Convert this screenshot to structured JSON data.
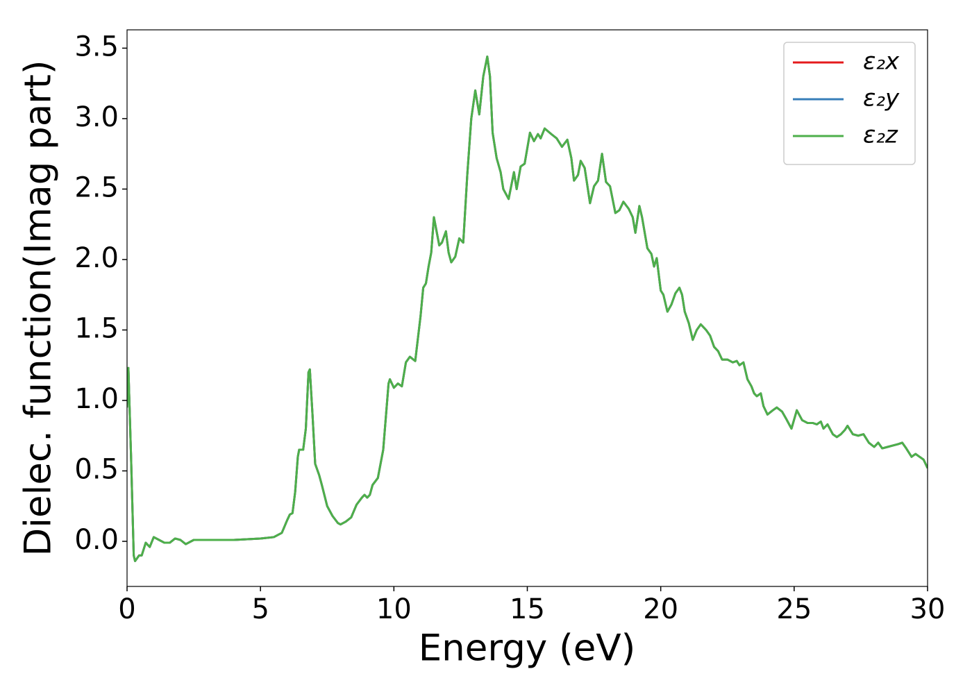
{
  "chart_data": {
    "type": "line",
    "xlabel": "Energy (eV)",
    "ylabel": "Dielec. function(Imag part)",
    "xlim": [
      0,
      30
    ],
    "ylim": [
      -0.32,
      3.63
    ],
    "xticks": [
      0,
      5,
      10,
      15,
      20,
      25,
      30
    ],
    "yticks": [
      {
        "value": 0,
        "label": "0.0"
      },
      0.5,
      {
        "value": 1,
        "label": "1.0"
      },
      1.5,
      {
        "value": 2,
        "label": "2.0"
      },
      2.5,
      {
        "value": 3,
        "label": "3.0"
      },
      3.5
    ],
    "legend": "upper right",
    "x": [
      0,
      0.05,
      0.15,
      0.25,
      0.3,
      0.45,
      0.55,
      0.7,
      0.85,
      1.0,
      1.2,
      1.4,
      1.6,
      1.8,
      2.0,
      2.2,
      2.5,
      3.0,
      3.5,
      4.0,
      4.5,
      5.0,
      5.5,
      5.8,
      6.0,
      6.1,
      6.2,
      6.3,
      6.4,
      6.45,
      6.6,
      6.7,
      6.8,
      6.85,
      6.95,
      7.05,
      7.2,
      7.3,
      7.5,
      7.7,
      7.9,
      8.0,
      8.2,
      8.4,
      8.6,
      8.8,
      8.9,
      9.0,
      9.1,
      9.2,
      9.4,
      9.6,
      9.8,
      9.85,
      10.0,
      10.15,
      10.3,
      10.45,
      10.6,
      10.8,
      11.0,
      11.1,
      11.2,
      11.3,
      11.4,
      11.5,
      11.6,
      11.7,
      11.8,
      11.95,
      12.05,
      12.15,
      12.3,
      12.45,
      12.6,
      12.75,
      12.9,
      13.05,
      13.2,
      13.35,
      13.5,
      13.6,
      13.7,
      13.85,
      14.0,
      14.1,
      14.3,
      14.5,
      14.6,
      14.75,
      14.9,
      15.1,
      15.25,
      15.4,
      15.5,
      15.65,
      15.9,
      16.1,
      16.3,
      16.5,
      16.65,
      16.75,
      16.9,
      17.0,
      17.15,
      17.35,
      17.5,
      17.65,
      17.8,
      17.95,
      18.1,
      18.3,
      18.45,
      18.6,
      18.8,
      18.95,
      19.05,
      19.2,
      19.3,
      19.5,
      19.65,
      19.75,
      19.85,
      20.0,
      20.1,
      20.25,
      20.4,
      20.55,
      20.7,
      20.8,
      20.9,
      21.05,
      21.2,
      21.35,
      21.5,
      21.7,
      21.85,
      22.0,
      22.15,
      22.3,
      22.5,
      22.7,
      22.85,
      22.95,
      23.1,
      23.25,
      23.4,
      23.5,
      23.6,
      23.75,
      23.85,
      24.0,
      24.2,
      24.35,
      24.55,
      24.7,
      24.9,
      25.1,
      25.3,
      25.5,
      25.7,
      25.85,
      26.0,
      26.1,
      26.25,
      26.45,
      26.6,
      26.75,
      26.9,
      27.0,
      27.2,
      27.4,
      27.6,
      27.8,
      28.0,
      28.15,
      28.3,
      28.5,
      28.7,
      28.9,
      29.05,
      29.2,
      29.4,
      29.55,
      29.7,
      29.85,
      30.0
    ],
    "series": [
      {
        "name": "ε₂x",
        "color": "#e41a1c",
        "values": [
          0.95,
          1.23,
          0.6,
          -0.1,
          -0.14,
          -0.1,
          -0.1,
          -0.01,
          -0.04,
          0.03,
          0.01,
          -0.01,
          -0.01,
          0.02,
          0.01,
          -0.02,
          0.01,
          0.01,
          0.01,
          0.01,
          0.015,
          0.02,
          0.03,
          0.06,
          0.15,
          0.19,
          0.2,
          0.35,
          0.6,
          0.65,
          0.65,
          0.8,
          1.2,
          1.22,
          0.9,
          0.55,
          0.47,
          0.4,
          0.25,
          0.18,
          0.13,
          0.12,
          0.14,
          0.17,
          0.26,
          0.31,
          0.33,
          0.31,
          0.33,
          0.4,
          0.45,
          0.65,
          1.12,
          1.15,
          1.09,
          1.12,
          1.1,
          1.27,
          1.31,
          1.28,
          1.6,
          1.8,
          1.83,
          1.95,
          2.05,
          2.3,
          2.2,
          2.1,
          2.12,
          2.2,
          2.05,
          1.98,
          2.02,
          2.15,
          2.12,
          2.6,
          3.0,
          3.2,
          3.03,
          3.3,
          3.44,
          3.3,
          2.9,
          2.72,
          2.62,
          2.5,
          2.43,
          2.62,
          2.5,
          2.66,
          2.68,
          2.9,
          2.84,
          2.89,
          2.86,
          2.93,
          2.89,
          2.86,
          2.8,
          2.85,
          2.72,
          2.56,
          2.6,
          2.7,
          2.65,
          2.4,
          2.52,
          2.56,
          2.75,
          2.55,
          2.52,
          2.33,
          2.35,
          2.41,
          2.36,
          2.3,
          2.19,
          2.38,
          2.3,
          2.08,
          2.04,
          1.95,
          2.01,
          1.78,
          1.75,
          1.63,
          1.68,
          1.76,
          1.8,
          1.75,
          1.63,
          1.55,
          1.43,
          1.5,
          1.54,
          1.5,
          1.46,
          1.38,
          1.35,
          1.29,
          1.29,
          1.27,
          1.28,
          1.25,
          1.27,
          1.15,
          1.1,
          1.05,
          1.03,
          1.05,
          0.96,
          0.9,
          0.93,
          0.95,
          0.92,
          0.87,
          0.8,
          0.93,
          0.86,
          0.84,
          0.84,
          0.83,
          0.85,
          0.8,
          0.83,
          0.76,
          0.74,
          0.76,
          0.79,
          0.82,
          0.76,
          0.75,
          0.76,
          0.7,
          0.67,
          0.7,
          0.66,
          0.67,
          0.68,
          0.69,
          0.7,
          0.66,
          0.6,
          0.62,
          0.6,
          0.58,
          0.52
        ]
      },
      {
        "name": "ε₂y",
        "color": "#377eb8",
        "values": [
          0.95,
          1.23,
          0.6,
          -0.1,
          -0.14,
          -0.1,
          -0.1,
          -0.01,
          -0.04,
          0.03,
          0.01,
          -0.01,
          -0.01,
          0.02,
          0.01,
          -0.02,
          0.01,
          0.01,
          0.01,
          0.01,
          0.015,
          0.02,
          0.03,
          0.06,
          0.15,
          0.19,
          0.2,
          0.35,
          0.6,
          0.65,
          0.65,
          0.8,
          1.2,
          1.22,
          0.9,
          0.55,
          0.47,
          0.4,
          0.25,
          0.18,
          0.13,
          0.12,
          0.14,
          0.17,
          0.26,
          0.31,
          0.33,
          0.31,
          0.33,
          0.4,
          0.45,
          0.65,
          1.12,
          1.15,
          1.09,
          1.12,
          1.1,
          1.27,
          1.31,
          1.28,
          1.6,
          1.8,
          1.83,
          1.95,
          2.05,
          2.3,
          2.2,
          2.1,
          2.12,
          2.2,
          2.05,
          1.98,
          2.02,
          2.15,
          2.12,
          2.6,
          3.0,
          3.2,
          3.03,
          3.3,
          3.44,
          3.3,
          2.9,
          2.72,
          2.62,
          2.5,
          2.43,
          2.62,
          2.5,
          2.66,
          2.68,
          2.9,
          2.84,
          2.89,
          2.86,
          2.93,
          2.89,
          2.86,
          2.8,
          2.85,
          2.72,
          2.56,
          2.6,
          2.7,
          2.65,
          2.4,
          2.52,
          2.56,
          2.75,
          2.55,
          2.52,
          2.33,
          2.35,
          2.41,
          2.36,
          2.3,
          2.19,
          2.38,
          2.3,
          2.08,
          2.04,
          1.95,
          2.01,
          1.78,
          1.75,
          1.63,
          1.68,
          1.76,
          1.8,
          1.75,
          1.63,
          1.55,
          1.43,
          1.5,
          1.54,
          1.5,
          1.46,
          1.38,
          1.35,
          1.29,
          1.29,
          1.27,
          1.28,
          1.25,
          1.27,
          1.15,
          1.1,
          1.05,
          1.03,
          1.05,
          0.96,
          0.9,
          0.93,
          0.95,
          0.92,
          0.87,
          0.8,
          0.93,
          0.86,
          0.84,
          0.84,
          0.83,
          0.85,
          0.8,
          0.83,
          0.76,
          0.74,
          0.76,
          0.79,
          0.82,
          0.76,
          0.75,
          0.76,
          0.7,
          0.67,
          0.7,
          0.66,
          0.67,
          0.68,
          0.69,
          0.7,
          0.66,
          0.6,
          0.62,
          0.6,
          0.58,
          0.52
        ]
      },
      {
        "name": "ε₂z",
        "color": "#4daf4a",
        "values": [
          0.95,
          1.23,
          0.6,
          -0.1,
          -0.14,
          -0.1,
          -0.1,
          -0.01,
          -0.04,
          0.03,
          0.01,
          -0.01,
          -0.01,
          0.02,
          0.01,
          -0.02,
          0.01,
          0.01,
          0.01,
          0.01,
          0.015,
          0.02,
          0.03,
          0.06,
          0.15,
          0.19,
          0.2,
          0.35,
          0.6,
          0.65,
          0.65,
          0.8,
          1.2,
          1.22,
          0.9,
          0.55,
          0.47,
          0.4,
          0.25,
          0.18,
          0.13,
          0.12,
          0.14,
          0.17,
          0.26,
          0.31,
          0.33,
          0.31,
          0.33,
          0.4,
          0.45,
          0.65,
          1.12,
          1.15,
          1.09,
          1.12,
          1.1,
          1.27,
          1.31,
          1.28,
          1.6,
          1.8,
          1.83,
          1.95,
          2.05,
          2.3,
          2.2,
          2.1,
          2.12,
          2.2,
          2.05,
          1.98,
          2.02,
          2.15,
          2.12,
          2.6,
          3.0,
          3.2,
          3.03,
          3.3,
          3.44,
          3.3,
          2.9,
          2.72,
          2.62,
          2.5,
          2.43,
          2.62,
          2.5,
          2.66,
          2.68,
          2.9,
          2.84,
          2.89,
          2.86,
          2.93,
          2.89,
          2.86,
          2.8,
          2.85,
          2.72,
          2.56,
          2.6,
          2.7,
          2.65,
          2.4,
          2.52,
          2.56,
          2.75,
          2.55,
          2.52,
          2.33,
          2.35,
          2.41,
          2.36,
          2.3,
          2.19,
          2.38,
          2.3,
          2.08,
          2.04,
          1.95,
          2.01,
          1.78,
          1.75,
          1.63,
          1.68,
          1.76,
          1.8,
          1.75,
          1.63,
          1.55,
          1.43,
          1.5,
          1.54,
          1.5,
          1.46,
          1.38,
          1.35,
          1.29,
          1.29,
          1.27,
          1.28,
          1.25,
          1.27,
          1.15,
          1.1,
          1.05,
          1.03,
          1.05,
          0.96,
          0.9,
          0.93,
          0.95,
          0.92,
          0.87,
          0.8,
          0.93,
          0.86,
          0.84,
          0.84,
          0.83,
          0.85,
          0.8,
          0.83,
          0.76,
          0.74,
          0.76,
          0.79,
          0.82,
          0.76,
          0.75,
          0.76,
          0.7,
          0.67,
          0.7,
          0.66,
          0.67,
          0.68,
          0.69,
          0.7,
          0.66,
          0.6,
          0.62,
          0.6,
          0.58,
          0.52
        ]
      }
    ]
  }
}
